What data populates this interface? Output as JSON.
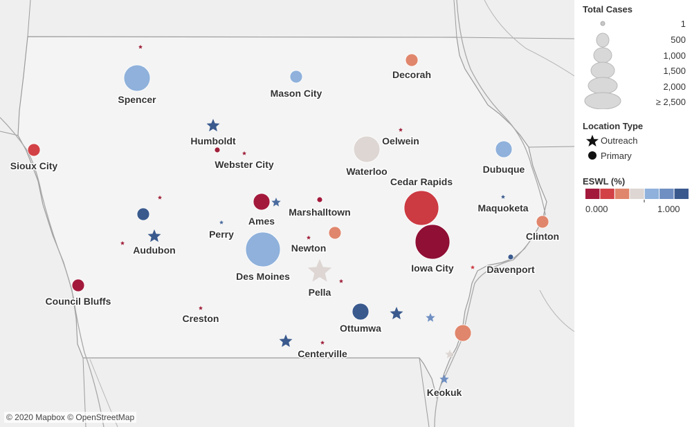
{
  "map": {
    "attribution": "© 2020 Mapbox © OpenStreetMap",
    "colors": {
      "land": "#f2f2f2",
      "water_bg": "#eeeeee",
      "border": "#9b9b9b",
      "river": "#9b9b9b"
    },
    "locations": [
      {
        "name": "Spencer",
        "label": "Spencer",
        "type": "Primary",
        "size_rank": "large",
        "color": "#8fb1db"
      },
      {
        "name": "Mason City",
        "label": "Mason City",
        "type": "Primary",
        "size_rank": "small",
        "color": "#8fb1db"
      },
      {
        "name": "Decorah",
        "label": "Decorah",
        "type": "Primary",
        "size_rank": "small",
        "color": "#e0866c"
      },
      {
        "name": "Spencer-north outreach",
        "label": "",
        "type": "Outreach",
        "size_rank": "tiny",
        "color": "#a0203a"
      },
      {
        "name": "Humboldt",
        "label": "Humboldt",
        "type": "Outreach",
        "size_rank": "medium",
        "color": "#3a5a8e"
      },
      {
        "name": "Webster City",
        "label": "Webster City",
        "type": "Outreach",
        "size_rank": "tiny",
        "color": "#a0203a"
      },
      {
        "name": "Webster City primary",
        "label": "",
        "type": "Primary",
        "size_rank": "tiny",
        "color": "#a0203a"
      },
      {
        "name": "Oelwein",
        "label": "Oelwein",
        "type": "Outreach",
        "size_rank": "tiny",
        "color": "#a0203a"
      },
      {
        "name": "Waterloo",
        "label": "Waterloo",
        "type": "Primary",
        "size_rank": "large",
        "color": "#ddd6d3"
      },
      {
        "name": "Dubuque",
        "label": "Dubuque",
        "type": "Primary",
        "size_rank": "medium",
        "color": "#8fb1db"
      },
      {
        "name": "Sioux City",
        "label": "Sioux City",
        "type": "Primary",
        "size_rank": "small",
        "color": "#d24146"
      },
      {
        "name": "Cedar Rapids",
        "label": "Cedar Rapids",
        "type": "Primary",
        "size_rank": "xlarge",
        "color": "#cc3a42"
      },
      {
        "name": "Maquoketa",
        "label": "Maquoketa",
        "type": "Outreach",
        "size_rank": "tiny",
        "color": "#3a5a8e"
      },
      {
        "name": "Ames",
        "label": "Ames",
        "type": "Primary",
        "size_rank": "medium",
        "color": "#a3193c"
      },
      {
        "name": "Ames outreach",
        "label": "",
        "type": "Outreach",
        "size_rank": "small",
        "color": "#4a6b9e"
      },
      {
        "name": "Marshalltown",
        "label": "Marshalltown",
        "type": "Primary",
        "size_rank": "tiny",
        "color": "#a3193c"
      },
      {
        "name": "Audubon primary",
        "label": "",
        "type": "Primary",
        "size_rank": "small",
        "color": "#3a5a8e"
      },
      {
        "name": "Audubon north outreach",
        "label": "",
        "type": "Outreach",
        "size_rank": "tiny",
        "color": "#a0203a"
      },
      {
        "name": "Audubon",
        "label": "Audubon",
        "type": "Outreach",
        "size_rank": "medium",
        "color": "#3a5a8e"
      },
      {
        "name": "Audubon west outreach",
        "label": "",
        "type": "Outreach",
        "size_rank": "tiny",
        "color": "#a0203a"
      },
      {
        "name": "Perry",
        "label": "Perry",
        "type": "Outreach",
        "size_rank": "tiny",
        "color": "#4a6b9e"
      },
      {
        "name": "Newton",
        "label": "Newton",
        "type": "Outreach",
        "size_rank": "tiny",
        "color": "#a0203a"
      },
      {
        "name": "Newton primary",
        "label": "",
        "type": "Primary",
        "size_rank": "small",
        "color": "#e0866c"
      },
      {
        "name": "Des Moines",
        "label": "Des Moines",
        "type": "Primary",
        "size_rank": "xlarge",
        "color": "#8fb1db"
      },
      {
        "name": "Iowa City",
        "label": "Iowa City",
        "type": "Primary",
        "size_rank": "xlarge",
        "color": "#8f0f35"
      },
      {
        "name": "Clinton",
        "label": "Clinton",
        "type": "Primary",
        "size_rank": "small",
        "color": "#e0866c"
      },
      {
        "name": "Davenport",
        "label": "Davenport",
        "type": "Primary",
        "size_rank": "tiny",
        "color": "#3a5a8e"
      },
      {
        "name": "Davenport west outreach",
        "label": "",
        "type": "Outreach",
        "size_rank": "tiny",
        "color": "#cc3a42"
      },
      {
        "name": "Pella",
        "label": "Pella",
        "type": "Outreach",
        "size_rank": "xlarge",
        "color": "#ddd6d3"
      },
      {
        "name": "Pella east outreach",
        "label": "",
        "type": "Outreach",
        "size_rank": "tiny",
        "color": "#a0203a"
      },
      {
        "name": "Council Bluffs",
        "label": "Council Bluffs",
        "type": "Primary",
        "size_rank": "small",
        "color": "#a3193c"
      },
      {
        "name": "Creston",
        "label": "Creston",
        "type": "Outreach",
        "size_rank": "tiny",
        "color": "#a0203a"
      },
      {
        "name": "Ottumwa",
        "label": "Ottumwa",
        "type": "Primary",
        "size_rank": "medium",
        "color": "#3a5a8e"
      },
      {
        "name": "Ottumwa east outreach",
        "label": "",
        "type": "Outreach",
        "size_rank": "medium",
        "color": "#3a5a8e"
      },
      {
        "name": "Ottumwa far east outreach",
        "label": "",
        "type": "Outreach",
        "size_rank": "small",
        "color": "#6f8fc2"
      },
      {
        "name": "Centerville outreach",
        "label": "",
        "type": "Outreach",
        "size_rank": "medium",
        "color": "#3a5a8e"
      },
      {
        "name": "Centerville",
        "label": "Centerville",
        "type": "Outreach",
        "size_rank": "tiny",
        "color": "#a0203a"
      },
      {
        "name": "Burlington primary",
        "label": "",
        "type": "Primary",
        "size_rank": "medium",
        "color": "#e0866c"
      },
      {
        "name": "Fort Madison outreach",
        "label": "",
        "type": "Outreach",
        "size_rank": "small",
        "color": "#ddd6d3"
      },
      {
        "name": "Keokuk",
        "label": "Keokuk",
        "type": "Outreach",
        "size_rank": "small",
        "color": "#6f8fc2"
      }
    ]
  },
  "legend": {
    "total_cases": {
      "title": "Total Cases",
      "entries": [
        "1",
        "500",
        "1,000",
        "1,500",
        "2,000",
        "≥ 2,500"
      ]
    },
    "location_type": {
      "title": "Location Type",
      "entries": [
        {
          "icon": "star-icon",
          "label": "Outreach"
        },
        {
          "icon": "circle-icon",
          "label": "Primary"
        }
      ]
    },
    "eswl": {
      "title": "ESWL (%)",
      "min_label": "0.000",
      "max_label": "1.000",
      "colors": [
        "#a3193c",
        "#d24146",
        "#e0866c",
        "#ddd6d3",
        "#8fb1db",
        "#6f8fc2",
        "#3a5a8e"
      ]
    }
  }
}
